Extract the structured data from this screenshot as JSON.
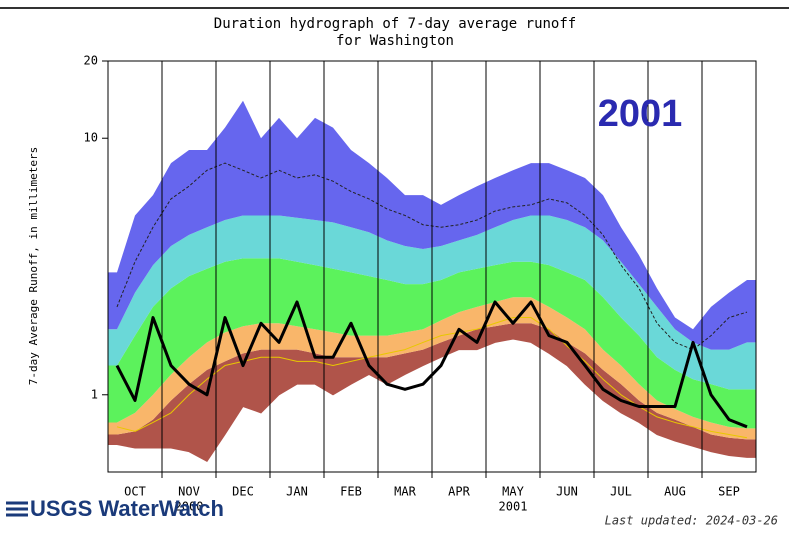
{
  "chart_data": {
    "type": "area",
    "title": [
      "Duration hydrograph of 7-day average runoff",
      "for Washington"
    ],
    "y_label": "7-day Average Runoff, in millimeters",
    "annotation": "2001",
    "year_labels": [
      "2000",
      "2001"
    ],
    "last_updated": "Last updated: 2024-03-26",
    "logo": "USGS WaterWatch",
    "log_y": true,
    "ylim": [
      0.5,
      20
    ],
    "yticks": [
      1,
      10,
      20
    ],
    "categories": [
      null,
      "OCT",
      null,
      null,
      "NOV",
      null,
      null,
      "DEC",
      null,
      null,
      "JAN",
      null,
      null,
      "FEB",
      null,
      null,
      "MAR",
      null,
      null,
      "APR",
      null,
      null,
      "MAY",
      null,
      null,
      "JUN",
      null,
      null,
      "JUL",
      null,
      null,
      "AUG",
      null,
      null,
      "SEP",
      null
    ],
    "bands": [
      {
        "color": "#b0544a",
        "values": [
          0.64,
          0.62,
          0.62,
          0.62,
          0.6,
          0.55,
          0.7,
          0.9,
          0.85,
          1.0,
          1.1,
          1.1,
          1.0,
          1.1,
          1.2,
          1.1,
          1.2,
          1.3,
          1.4,
          1.5,
          1.5,
          1.6,
          1.65,
          1.6,
          1.45,
          1.3,
          1.1,
          0.95,
          0.85,
          0.78,
          0.7,
          0.66,
          0.63,
          0.6,
          0.58,
          0.57
        ]
      },
      {
        "color": "#b0544a",
        "values": [
          0.7,
          0.72,
          0.8,
          0.95,
          1.1,
          1.25,
          1.35,
          1.45,
          1.5,
          1.5,
          1.5,
          1.45,
          1.4,
          1.4,
          1.4,
          1.4,
          1.45,
          1.5,
          1.6,
          1.7,
          1.8,
          1.85,
          1.9,
          1.9,
          1.8,
          1.6,
          1.45,
          1.25,
          1.1,
          0.95,
          0.85,
          0.8,
          0.75,
          0.7,
          0.68,
          0.67
        ]
      },
      {
        "color": "#f9b66a",
        "values": [
          0.78,
          0.85,
          1.0,
          1.2,
          1.4,
          1.6,
          1.75,
          1.85,
          1.9,
          1.9,
          1.85,
          1.8,
          1.75,
          1.7,
          1.7,
          1.7,
          1.75,
          1.8,
          1.95,
          2.1,
          2.2,
          2.3,
          2.4,
          2.4,
          2.2,
          2.0,
          1.8,
          1.5,
          1.3,
          1.1,
          0.95,
          0.88,
          0.82,
          0.78,
          0.75,
          0.74
        ]
      },
      {
        "color": "#5cf25c",
        "values": [
          1.3,
          1.7,
          2.2,
          2.6,
          2.9,
          3.1,
          3.3,
          3.4,
          3.4,
          3.4,
          3.3,
          3.2,
          3.1,
          3.0,
          2.9,
          2.8,
          2.7,
          2.7,
          2.8,
          3.0,
          3.1,
          3.2,
          3.3,
          3.3,
          3.2,
          3.0,
          2.8,
          2.4,
          2.0,
          1.7,
          1.4,
          1.25,
          1.15,
          1.1,
          1.05,
          1.05
        ]
      },
      {
        "color": "#6ad8d8",
        "values": [
          1.8,
          2.5,
          3.2,
          3.8,
          4.2,
          4.5,
          4.8,
          5,
          5,
          5,
          4.9,
          4.8,
          4.7,
          4.5,
          4.3,
          4.0,
          3.8,
          3.7,
          3.8,
          4,
          4.2,
          4.5,
          4.8,
          5,
          5,
          4.8,
          4.5,
          4,
          3.3,
          2.7,
          2.2,
          1.8,
          1.6,
          1.5,
          1.5,
          1.6
        ]
      },
      {
        "color": "#6666ee",
        "values": [
          3,
          5,
          6,
          8,
          9,
          9,
          11,
          14,
          10,
          12,
          10,
          12,
          11,
          9,
          8,
          7,
          6,
          6,
          5.5,
          6,
          6.5,
          7,
          7.5,
          8,
          8,
          7.5,
          7,
          6,
          4.5,
          3.5,
          2.6,
          2.0,
          1.8,
          2.2,
          2.5,
          2.8
        ]
      }
    ],
    "series": [
      {
        "color": "#222222",
        "dashed": true,
        "width": 1,
        "values": [
          2.2,
          3.3,
          4.5,
          5.8,
          6.5,
          7.5,
          8,
          7.5,
          7,
          7.5,
          7,
          7.2,
          6.8,
          6.2,
          5.8,
          5.3,
          5,
          4.6,
          4.5,
          4.6,
          4.8,
          5.2,
          5.4,
          5.5,
          5.8,
          5.6,
          5,
          4.2,
          3.2,
          2.6,
          1.9,
          1.6,
          1.5,
          1.7,
          2.0,
          2.1
        ]
      },
      {
        "color": "#e8c800",
        "dashed": false,
        "width": 1,
        "values": [
          0.75,
          0.72,
          0.78,
          0.85,
          1.0,
          1.15,
          1.3,
          1.35,
          1.4,
          1.4,
          1.35,
          1.35,
          1.3,
          1.35,
          1.4,
          1.45,
          1.5,
          1.6,
          1.7,
          1.75,
          1.8,
          1.9,
          2.0,
          2.0,
          1.8,
          1.55,
          1.35,
          1.15,
          1.0,
          0.9,
          0.82,
          0.78,
          0.75,
          0.72,
          0.7,
          0.68
        ]
      },
      {
        "color": "#000000",
        "dashed": false,
        "width": 3,
        "values": [
          1.3,
          0.95,
          2.0,
          1.3,
          1.1,
          1.0,
          2.0,
          1.3,
          1.9,
          1.6,
          2.3,
          1.4,
          1.4,
          1.9,
          1.3,
          1.1,
          1.05,
          1.1,
          1.3,
          1.8,
          1.6,
          2.3,
          1.9,
          2.3,
          1.7,
          1.6,
          1.3,
          1.05,
          0.95,
          0.9,
          0.9,
          0.9,
          1.6,
          1.0,
          0.8,
          0.75
        ]
      }
    ]
  }
}
